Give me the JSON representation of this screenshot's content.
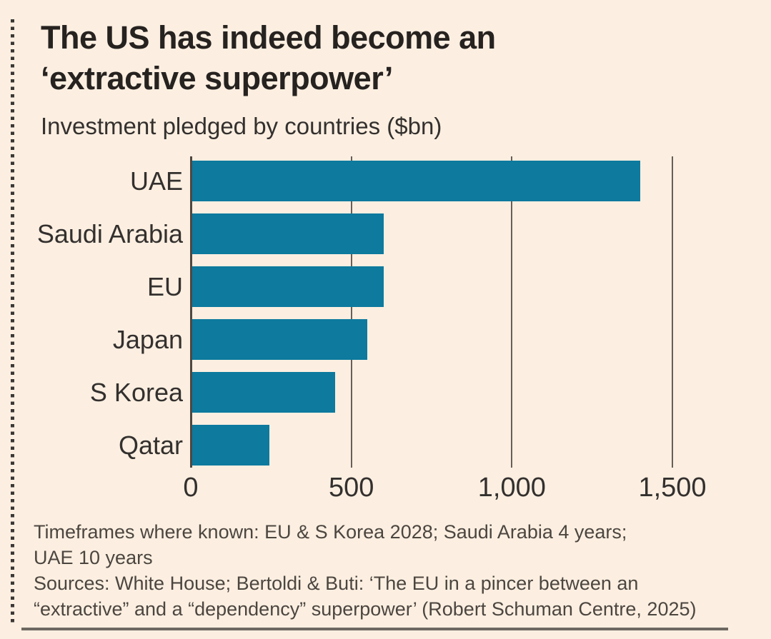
{
  "header": {
    "title": "The US has indeed become an ‘extractive superpower’",
    "title_lines": [
      "The US has indeed become an",
      "‘extractive superpower’"
    ],
    "subtitle": "Investment pledged by countries ($bn)"
  },
  "chart_data": {
    "type": "bar",
    "orientation": "horizontal",
    "title": "The US has indeed become an ‘extractive superpower’",
    "subtitle": "Investment pledged by countries ($bn)",
    "categories": [
      "UAE",
      "Saudi Arabia",
      "EU",
      "Japan",
      "S Korea",
      "Qatar"
    ],
    "values": [
      1400,
      600,
      600,
      550,
      450,
      245
    ],
    "unit": "$bn",
    "xlim": [
      0,
      1500
    ],
    "xticks": [
      0,
      500,
      1000,
      1500
    ],
    "xtick_labels": [
      "0",
      "500",
      "1,000",
      "1,500"
    ],
    "grid": true,
    "legend": false
  },
  "footer": {
    "timeframes_lines": [
      "Timeframes where known: EU & S Korea 2028; Saudi Arabia 4 years;",
      "UAE 10 years"
    ],
    "sources_lines": [
      "Sources: White House; Bertoldi & Buti: ‘The EU in a pincer between an",
      "“extractive” and a “dependency” superpower’ (Robert Schuman Centre, 2025)"
    ]
  },
  "colors": {
    "background": "#fcefe1",
    "bar": "#0d7a9e",
    "grid": "#675f58",
    "axis": "#4e4841",
    "title_text": "#262220",
    "body_text": "#33302e",
    "footer_text": "#4c4640",
    "bottom_rule": "#6e6862",
    "dotted_rule": "#3b3734"
  }
}
